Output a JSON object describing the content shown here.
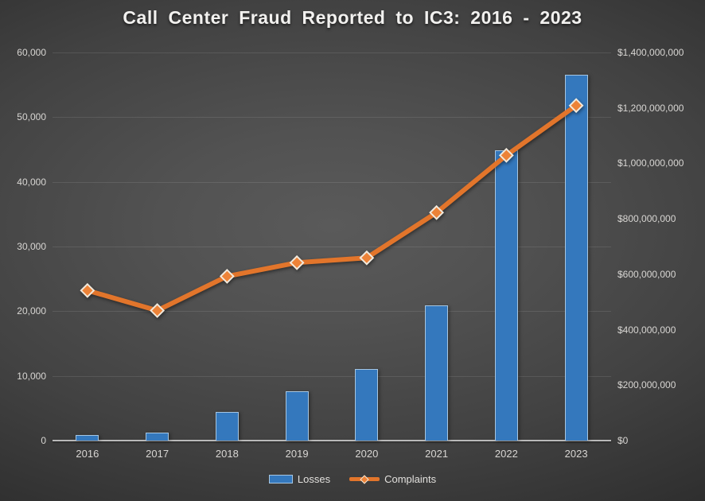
{
  "title": "Call Center Fraud Reported to IC3: 2016 - 2023",
  "legend": {
    "items": [
      {
        "label": "Losses",
        "series": "bars"
      },
      {
        "label": "Complaints",
        "series": "line"
      }
    ]
  },
  "colors": {
    "bar_fill": "#3478bd",
    "bar_border": "#a6c6e2",
    "line": "#e2752b",
    "marker_fill": "#ed8338",
    "marker_border": "#f1e9dc",
    "background_center": "#575757",
    "background_corner": "#262626",
    "gridline": "rgba(255,255,255,0.10)",
    "axis_line": "#b9b9b9",
    "tick_text": "#d8d6d3",
    "title_text": "#f2f1ef"
  },
  "chart_data": {
    "type": "bar",
    "subtype": "combo-bar-line",
    "title": "Call Center Fraud Reported to IC3: 2016 - 2023",
    "categories": [
      "2016",
      "2017",
      "2018",
      "2019",
      "2020",
      "2021",
      "2022",
      "2023"
    ],
    "series": [
      {
        "name": "Losses",
        "type": "bar",
        "axis": "right",
        "unit": "USD",
        "values": [
          20000000,
          29000000,
          103000000,
          178000000,
          258000000,
          488000000,
          1046000000,
          1320000000
        ]
      },
      {
        "name": "Complaints",
        "type": "line",
        "axis": "left",
        "unit": "complaints",
        "values": [
          23200,
          20100,
          25400,
          27500,
          28250,
          35250,
          44100,
          51800
        ]
      }
    ],
    "axes": {
      "left": {
        "min": 0,
        "max": 60000,
        "step": 10000,
        "tick_labels": [
          "60,000",
          "50,000",
          "40,000",
          "30,000",
          "20,000",
          "10,000",
          "0"
        ]
      },
      "right": {
        "min": 0,
        "max": 1400000000,
        "step": 200000000,
        "tick_labels": [
          "$1,400,000,000",
          "$1,200,000,000",
          "$1,000,000,000",
          "$800,000,000",
          "$600,000,000",
          "$400,000,000",
          "$200,000,000",
          "$0"
        ]
      }
    },
    "grid": "horizontal-only",
    "legend_position": "bottom",
    "xlabel": "",
    "ylabel_left": "",
    "ylabel_right": ""
  }
}
